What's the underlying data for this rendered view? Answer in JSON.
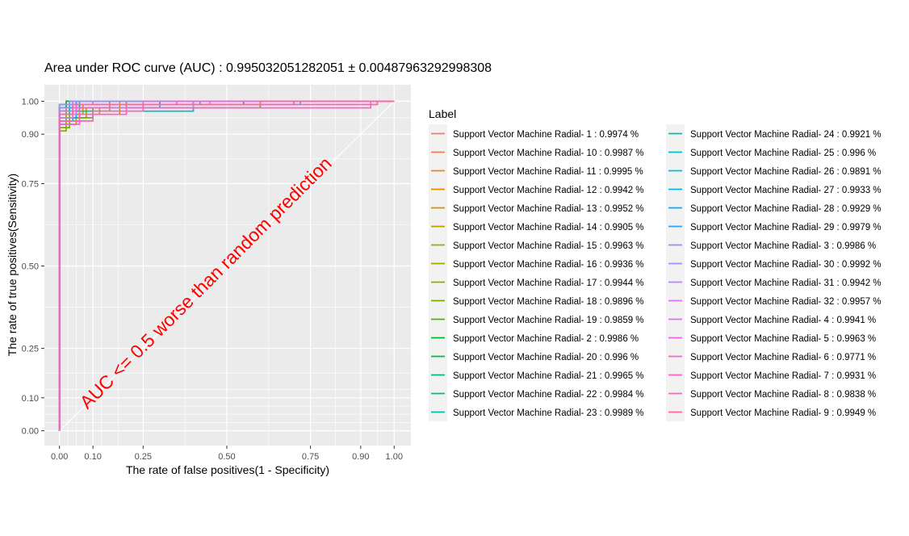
{
  "chart_data": {
    "type": "line",
    "title": "Area under ROC curve (AUC) :  0.995032051282051 ± 0.00487963292998308",
    "xlabel": "The rate of false positives(1 - Specificity)",
    "ylabel": "The rate of true positives(Sensitivity)",
    "xlim": [
      -0.045,
      1.05
    ],
    "ylim": [
      -0.045,
      1.05
    ],
    "x_ticks": [
      {
        "value": 0.0,
        "label": "0.00"
      },
      {
        "value": 0.1,
        "label": "0.10"
      },
      {
        "value": 0.25,
        "label": "0.25"
      },
      {
        "value": 0.5,
        "label": "0.50"
      },
      {
        "value": 0.75,
        "label": "0.75"
      },
      {
        "value": 0.9,
        "label": "0.90"
      },
      {
        "value": 1.0,
        "label": "1.00"
      }
    ],
    "y_ticks": [
      {
        "value": 0.0,
        "label": "0.00"
      },
      {
        "value": 0.1,
        "label": "0.10"
      },
      {
        "value": 0.25,
        "label": "0.25"
      },
      {
        "value": 0.5,
        "label": "0.50"
      },
      {
        "value": 0.75,
        "label": "0.75"
      },
      {
        "value": 0.9,
        "label": "0.90"
      },
      {
        "value": 1.0,
        "label": "1.00"
      }
    ],
    "x_minor_grid": [
      0.025,
      0.05,
      0.075,
      0.125,
      0.175,
      0.375,
      0.625,
      0.825,
      0.95
    ],
    "y_minor_grid": [
      0.025,
      0.05,
      0.075,
      0.125,
      0.175,
      0.375,
      0.625,
      0.825,
      0.95
    ],
    "annotation": {
      "text": "AUC <= 0.5 worse than random prediction",
      "color": "#ff0000",
      "x": 0.45,
      "y": 0.45
    },
    "diagonal": {
      "from": [
        0,
        0
      ],
      "to": [
        1,
        1
      ],
      "color": "#ffffff"
    },
    "legend_title": "Label",
    "legend_position": "right",
    "series": [
      {
        "name": "Support Vector Machine Radial- 1  :  0.9974 %",
        "color": "#F8766D",
        "points": [
          [
            0,
            0
          ],
          [
            0,
            0.97
          ],
          [
            0.02,
            0.97
          ],
          [
            0.02,
            0.99
          ],
          [
            0.1,
            0.99
          ],
          [
            0.1,
            1
          ],
          [
            1,
            1
          ]
        ]
      },
      {
        "name": "Support Vector Machine Radial- 10  :  0.9987 %",
        "color": "#F07E4E",
        "points": [
          [
            0,
            0
          ],
          [
            0,
            0.98
          ],
          [
            0.04,
            0.98
          ],
          [
            0.04,
            1
          ],
          [
            1,
            1
          ]
        ]
      },
      {
        "name": "Support Vector Machine Radial- 11  :  0.9995 %",
        "color": "#E7851E",
        "points": [
          [
            0,
            0
          ],
          [
            0,
            0.99
          ],
          [
            0.03,
            0.99
          ],
          [
            0.03,
            1
          ],
          [
            1,
            1
          ]
        ]
      },
      {
        "name": "Support Vector Machine Radial- 12  :  0.9942 %",
        "color": "#DC8E00",
        "points": [
          [
            0,
            0
          ],
          [
            0,
            0.96
          ],
          [
            0.12,
            0.96
          ],
          [
            0.12,
            0.98
          ],
          [
            0.2,
            0.98
          ],
          [
            0.2,
            1
          ],
          [
            1,
            1
          ]
        ]
      },
      {
        "name": "Support Vector Machine Radial- 13  :  0.9952 %",
        "color": "#D09400",
        "points": [
          [
            0,
            0
          ],
          [
            0,
            0.96
          ],
          [
            0.07,
            0.96
          ],
          [
            0.07,
            0.99
          ],
          [
            0.18,
            0.99
          ],
          [
            0.18,
            1
          ],
          [
            1,
            1
          ]
        ]
      },
      {
        "name": "Support Vector Machine Radial- 14  :  0.9905 %",
        "color": "#C29A00",
        "points": [
          [
            0,
            0
          ],
          [
            0,
            0.93
          ],
          [
            0.05,
            0.93
          ],
          [
            0.05,
            0.96
          ],
          [
            0.18,
            0.96
          ],
          [
            0.18,
            0.99
          ],
          [
            0.3,
            0.99
          ],
          [
            0.3,
            1
          ],
          [
            1,
            1
          ]
        ]
      },
      {
        "name": "Support Vector Machine Radial- 15  :  0.9963 %",
        "color": "#B4A000",
        "points": [
          [
            0,
            0
          ],
          [
            0,
            0.97
          ],
          [
            0.06,
            0.97
          ],
          [
            0.06,
            0.99
          ],
          [
            0.2,
            0.99
          ],
          [
            0.2,
            1
          ],
          [
            1,
            1
          ]
        ]
      },
      {
        "name": "Support Vector Machine Radial- 16  :  0.9936 %",
        "color": "#A3A500",
        "points": [
          [
            0,
            0
          ],
          [
            0,
            0.95
          ],
          [
            0.08,
            0.95
          ],
          [
            0.08,
            0.98
          ],
          [
            0.2,
            0.98
          ],
          [
            0.2,
            1
          ],
          [
            1,
            1
          ]
        ]
      },
      {
        "name": "Support Vector Machine Radial- 17  :  0.9944 %",
        "color": "#8FAA00",
        "points": [
          [
            0,
            0
          ],
          [
            0,
            0.91
          ],
          [
            0.02,
            0.91
          ],
          [
            0.02,
            0.97
          ],
          [
            0.15,
            0.97
          ],
          [
            0.15,
            1
          ],
          [
            1,
            1
          ]
        ]
      },
      {
        "name": "Support Vector Machine Radial- 18  :  0.9896 %",
        "color": "#77AF00",
        "points": [
          [
            0,
            0
          ],
          [
            0,
            0.92
          ],
          [
            0.03,
            0.92
          ],
          [
            0.03,
            0.98
          ],
          [
            0.25,
            0.98
          ],
          [
            0.25,
            1
          ],
          [
            1,
            1
          ]
        ]
      },
      {
        "name": "Support Vector Machine Radial- 19  :  0.9859 %",
        "color": "#55B300",
        "points": [
          [
            0,
            0
          ],
          [
            0,
            0.95
          ],
          [
            0.1,
            0.95
          ],
          [
            0.1,
            0.98
          ],
          [
            0.6,
            0.98
          ],
          [
            0.6,
            1
          ],
          [
            1,
            1
          ]
        ]
      },
      {
        "name": "Support Vector Machine Radial- 2  :  0.9986 %",
        "color": "#00B62A",
        "points": [
          [
            0,
            0
          ],
          [
            0,
            0.98
          ],
          [
            0.02,
            0.98
          ],
          [
            0.02,
            1
          ],
          [
            1,
            1
          ]
        ]
      },
      {
        "name": "Support Vector Machine Radial- 20  :  0.996 %",
        "color": "#00B94D",
        "points": [
          [
            0,
            0
          ],
          [
            0,
            0.97
          ],
          [
            0.05,
            0.97
          ],
          [
            0.05,
            0.99
          ],
          [
            0.55,
            0.99
          ],
          [
            0.55,
            1
          ],
          [
            1,
            1
          ]
        ]
      },
      {
        "name": "Support Vector Machine Radial- 21  :  0.9965 %",
        "color": "#00BB6B",
        "points": [
          [
            0,
            0
          ],
          [
            0,
            0.97
          ],
          [
            0.06,
            0.97
          ],
          [
            0.06,
            0.99
          ],
          [
            0.35,
            0.99
          ],
          [
            0.35,
            1
          ],
          [
            1,
            1
          ]
        ]
      },
      {
        "name": "Support Vector Machine Radial- 22  :  0.9984 %",
        "color": "#00BD86",
        "points": [
          [
            0,
            0
          ],
          [
            0,
            0.98
          ],
          [
            0.05,
            0.98
          ],
          [
            0.05,
            1
          ],
          [
            1,
            1
          ]
        ]
      },
      {
        "name": "Support Vector Machine Radial- 23  :  0.9989 %",
        "color": "#00BF9E",
        "points": [
          [
            0,
            0
          ],
          [
            0,
            0.99
          ],
          [
            0.06,
            0.99
          ],
          [
            0.06,
            1
          ],
          [
            1,
            1
          ]
        ]
      },
      {
        "name": "Support Vector Machine Radial- 24  :  0.9921 %",
        "color": "#00BFB5",
        "points": [
          [
            0,
            0
          ],
          [
            0,
            0.94
          ],
          [
            0.04,
            0.94
          ],
          [
            0.04,
            0.97
          ],
          [
            0.4,
            0.97
          ],
          [
            0.4,
            0.99
          ],
          [
            0.7,
            0.99
          ],
          [
            0.7,
            1
          ],
          [
            1,
            1
          ]
        ]
      },
      {
        "name": "Support Vector Machine Radial- 25  :  0.996 %",
        "color": "#00BECB",
        "points": [
          [
            0,
            0
          ],
          [
            0,
            0.97
          ],
          [
            0.05,
            0.97
          ],
          [
            0.05,
            0.99
          ],
          [
            0.4,
            0.99
          ],
          [
            0.4,
            1
          ],
          [
            1,
            1
          ]
        ]
      },
      {
        "name": "Support Vector Machine Radial- 26  :  0.9891 %",
        "color": "#00BBDF",
        "points": [
          [
            0,
            0
          ],
          [
            0,
            0.95
          ],
          [
            0.05,
            0.95
          ],
          [
            0.05,
            0.99
          ],
          [
            0.72,
            0.99
          ],
          [
            0.72,
            1
          ],
          [
            1,
            1
          ]
        ]
      },
      {
        "name": "Support Vector Machine Radial- 27  :  0.9933 %",
        "color": "#00B6F0",
        "points": [
          [
            0,
            0
          ],
          [
            0,
            0.96
          ],
          [
            0.03,
            0.96
          ],
          [
            0.03,
            0.99
          ],
          [
            0.42,
            0.99
          ],
          [
            0.42,
            1
          ],
          [
            1,
            1
          ]
        ]
      },
      {
        "name": "Support Vector Machine Radial- 28  :  0.9929 %",
        "color": "#00B0FA",
        "points": [
          [
            0,
            0
          ],
          [
            0,
            0.95
          ],
          [
            0.05,
            0.95
          ],
          [
            0.05,
            0.98
          ],
          [
            0.3,
            0.98
          ],
          [
            0.3,
            1
          ],
          [
            1,
            1
          ]
        ]
      },
      {
        "name": "Support Vector Machine Radial- 29  :  0.9979 %",
        "color": "#29A3FF",
        "points": [
          [
            0,
            0
          ],
          [
            0,
            0.98
          ],
          [
            0.05,
            0.98
          ],
          [
            0.05,
            1
          ],
          [
            1,
            1
          ]
        ]
      },
      {
        "name": "Support Vector Machine Radial- 3  :  0.9986 %",
        "color": "#8B93FF",
        "points": [
          [
            0,
            0
          ],
          [
            0,
            0.98
          ],
          [
            0.03,
            0.98
          ],
          [
            0.03,
            1
          ],
          [
            1,
            1
          ]
        ]
      },
      {
        "name": "Support Vector Machine Radial- 30  :  0.9992 %",
        "color": "#A98AFF",
        "points": [
          [
            0,
            0
          ],
          [
            0,
            0.99
          ],
          [
            0.04,
            0.99
          ],
          [
            0.04,
            1
          ],
          [
            1,
            1
          ]
        ]
      },
      {
        "name": "Support Vector Machine Radial- 31  :  0.9942 %",
        "color": "#C77CFF",
        "points": [
          [
            0,
            0
          ],
          [
            0,
            0.96
          ],
          [
            0.05,
            0.96
          ],
          [
            0.05,
            0.98
          ],
          [
            0.4,
            0.98
          ],
          [
            0.4,
            1
          ],
          [
            1,
            1
          ]
        ]
      },
      {
        "name": "Support Vector Machine Radial- 32  :  0.9957 %",
        "color": "#DB72FB",
        "points": [
          [
            0,
            0
          ],
          [
            0,
            0.97
          ],
          [
            0.05,
            0.97
          ],
          [
            0.05,
            0.99
          ],
          [
            0.45,
            0.99
          ],
          [
            0.45,
            1
          ],
          [
            1,
            1
          ]
        ]
      },
      {
        "name": "Support Vector Machine Radial- 4  :  0.9941 %",
        "color": "#E96BEF",
        "points": [
          [
            0,
            0
          ],
          [
            0,
            0.95
          ],
          [
            0.04,
            0.95
          ],
          [
            0.04,
            0.98
          ],
          [
            0.25,
            0.98
          ],
          [
            0.25,
            1
          ],
          [
            1,
            1
          ]
        ]
      },
      {
        "name": "Support Vector Machine Radial- 5  :  0.9963 %",
        "color": "#F464E1",
        "points": [
          [
            0,
            0
          ],
          [
            0,
            0.97
          ],
          [
            0.05,
            0.97
          ],
          [
            0.05,
            0.99
          ],
          [
            0.35,
            0.99
          ],
          [
            0.35,
            1
          ],
          [
            1,
            1
          ]
        ]
      },
      {
        "name": "Support Vector Machine Radial- 6  :  0.9771 %",
        "color": "#FB61D3",
        "points": [
          [
            0,
            0
          ],
          [
            0,
            0.93
          ],
          [
            0.06,
            0.93
          ],
          [
            0.06,
            0.96
          ],
          [
            0.2,
            0.96
          ],
          [
            0.2,
            0.98
          ],
          [
            0.93,
            0.98
          ],
          [
            0.93,
            1
          ],
          [
            1,
            1
          ]
        ]
      },
      {
        "name": "Support Vector Machine Radial- 7  :  0.9931 %",
        "color": "#FF61C3",
        "points": [
          [
            0,
            0
          ],
          [
            0,
            0.94
          ],
          [
            0.06,
            0.94
          ],
          [
            0.06,
            0.98
          ],
          [
            0.15,
            0.98
          ],
          [
            0.15,
            0.99
          ],
          [
            0.7,
            0.99
          ],
          [
            0.7,
            1
          ],
          [
            1,
            1
          ]
        ]
      },
      {
        "name": "Support Vector Machine Radial- 8  :  0.9838 %",
        "color": "#FF63B2",
        "points": [
          [
            0,
            0
          ],
          [
            0,
            0.94
          ],
          [
            0.1,
            0.94
          ],
          [
            0.1,
            0.97
          ],
          [
            0.25,
            0.97
          ],
          [
            0.25,
            0.99
          ],
          [
            0.95,
            0.99
          ],
          [
            0.95,
            1
          ],
          [
            1,
            1
          ]
        ]
      },
      {
        "name": "Support Vector Machine Radial- 9  :  0.9949 %",
        "color": "#FF679E",
        "points": [
          [
            0,
            0
          ],
          [
            0,
            0.96
          ],
          [
            0.04,
            0.96
          ],
          [
            0.04,
            0.99
          ],
          [
            0.6,
            0.99
          ],
          [
            0.6,
            1
          ],
          [
            1,
            1
          ]
        ]
      }
    ]
  }
}
